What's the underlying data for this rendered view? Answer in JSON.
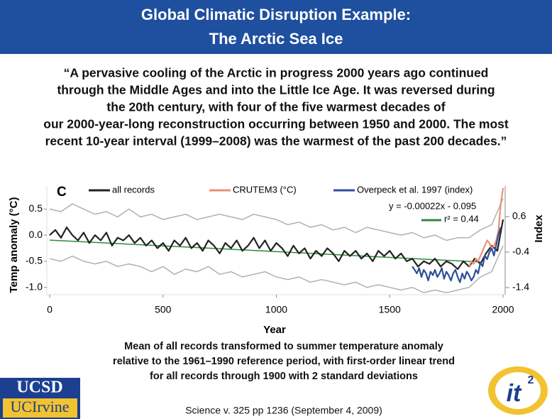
{
  "header": {
    "title_lines": [
      "Global Climatic Disruption Example:",
      "The Arctic Sea Ice"
    ]
  },
  "quote_lines": [
    "“A pervasive cooling of the Arctic in progress 2000 years ago continued",
    "through the Middle Ages and into the Little Ice Age.  It was reversed during",
    "the 20th century, with four of the five warmest decades of",
    "our 2000-year-long reconstruction occurring between 1950 and 2000. The most",
    "recent 10-year interval (1999–2008) was the warmest of the past 200 decades.”"
  ],
  "chart_data": {
    "type": "line",
    "panel_label": "C",
    "x_label": "Year",
    "y_label": "Temp anomaly (°C)",
    "y2_label": "Index",
    "xlim": [
      0,
      2000
    ],
    "xticks": [
      0,
      500,
      1000,
      1500,
      2000
    ],
    "ylim": [
      -1.14,
      0.94
    ],
    "yticks": [
      0.5,
      {
        "value": 0,
        "label": "0.0"
      },
      -0.5,
      {
        "value": -1,
        "label": "-1.0"
      }
    ],
    "y2lim": [
      -1.6,
      1.46
    ],
    "y2ticks": [
      0.6,
      -0.4,
      -1.4
    ],
    "legend": "top",
    "grid": false,
    "annotations": [
      "y = -0.00022x - 0.095",
      "r² = 0.44"
    ],
    "series": [
      {
        "color": "#b0b0b0",
        "x": [
          0,
          50,
          100,
          150,
          200,
          250,
          300,
          350,
          400,
          450,
          500,
          550,
          600,
          650,
          700,
          750,
          800,
          850,
          900,
          950,
          1000,
          1050,
          1100,
          1150,
          1200,
          1250,
          1300,
          1350,
          1400,
          1450,
          1500,
          1550,
          1600,
          1650,
          1700,
          1750,
          1800,
          1850,
          1900,
          1950,
          2000
        ],
        "values": [
          0.5,
          0.45,
          0.6,
          0.5,
          0.4,
          0.45,
          0.35,
          0.5,
          0.35,
          0.4,
          0.3,
          0.35,
          0.4,
          0.3,
          0.35,
          0.4,
          0.35,
          0.3,
          0.4,
          0.35,
          0.3,
          0.2,
          0.25,
          0.15,
          0.2,
          0.1,
          0.15,
          0.05,
          0.15,
          0.1,
          0.05,
          0.0,
          0.05,
          -0.05,
          0.0,
          -0.1,
          -0.05,
          -0.05,
          0.1,
          0.2,
          0.7
        ]
      },
      {
        "color": "#b0b0b0",
        "x": [
          0,
          50,
          100,
          150,
          200,
          250,
          300,
          350,
          400,
          450,
          500,
          550,
          600,
          650,
          700,
          750,
          800,
          850,
          900,
          950,
          1000,
          1050,
          1100,
          1150,
          1200,
          1250,
          1300,
          1350,
          1400,
          1450,
          1500,
          1550,
          1600,
          1650,
          1700,
          1750,
          1800,
          1850,
          1900,
          1950,
          2000
        ],
        "values": [
          -0.45,
          -0.5,
          -0.4,
          -0.5,
          -0.55,
          -0.5,
          -0.6,
          -0.55,
          -0.6,
          -0.7,
          -0.6,
          -0.75,
          -0.65,
          -0.7,
          -0.6,
          -0.75,
          -0.7,
          -0.8,
          -0.75,
          -0.7,
          -0.8,
          -0.85,
          -0.8,
          -0.9,
          -0.85,
          -0.9,
          -0.95,
          -0.9,
          -1.0,
          -0.95,
          -1.0,
          -1.05,
          -1.0,
          -1.1,
          -1.05,
          -1.1,
          -1.05,
          -1.0,
          -0.8,
          -0.7,
          -0.2
        ]
      },
      {
        "color": "#2e8b3a",
        "x": [
          0,
          1900
        ],
        "values": [
          -0.095,
          -0.513
        ]
      },
      {
        "name": "all records",
        "color": "#222222",
        "x": [
          0,
          25,
          50,
          75,
          100,
          125,
          150,
          175,
          200,
          225,
          250,
          275,
          300,
          325,
          350,
          375,
          400,
          425,
          450,
          475,
          500,
          525,
          550,
          575,
          600,
          625,
          650,
          675,
          700,
          725,
          750,
          775,
          800,
          825,
          850,
          875,
          900,
          925,
          950,
          975,
          1000,
          1025,
          1050,
          1075,
          1100,
          1125,
          1150,
          1175,
          1200,
          1225,
          1250,
          1275,
          1300,
          1325,
          1350,
          1375,
          1400,
          1425,
          1450,
          1475,
          1500,
          1525,
          1550,
          1575,
          1600,
          1625,
          1650,
          1675,
          1700,
          1725,
          1750,
          1775,
          1800,
          1825,
          1850,
          1875,
          1900,
          1925,
          1950,
          1975,
          2000
        ],
        "values": [
          0.0,
          0.1,
          -0.05,
          0.15,
          0.0,
          -0.1,
          0.05,
          -0.15,
          0.0,
          -0.1,
          0.05,
          -0.2,
          -0.05,
          -0.1,
          0.0,
          -0.15,
          -0.05,
          -0.2,
          -0.1,
          -0.25,
          -0.15,
          -0.3,
          -0.1,
          -0.2,
          -0.05,
          -0.25,
          -0.15,
          -0.3,
          -0.1,
          -0.2,
          -0.35,
          -0.15,
          -0.25,
          -0.1,
          -0.3,
          -0.2,
          -0.05,
          -0.25,
          -0.1,
          -0.3,
          -0.15,
          -0.25,
          -0.4,
          -0.2,
          -0.35,
          -0.25,
          -0.45,
          -0.3,
          -0.4,
          -0.25,
          -0.35,
          -0.5,
          -0.3,
          -0.4,
          -0.3,
          -0.45,
          -0.35,
          -0.5,
          -0.3,
          -0.4,
          -0.3,
          -0.45,
          -0.35,
          -0.5,
          -0.45,
          -0.6,
          -0.5,
          -0.55,
          -0.45,
          -0.6,
          -0.5,
          -0.55,
          -0.65,
          -0.5,
          -0.6,
          -0.45,
          -0.55,
          -0.35,
          -0.2,
          -0.3,
          0.3
        ]
      },
      {
        "name": "CRUTEM3 (°C)",
        "color": "#e8917a",
        "x": [
          1850,
          1860,
          1870,
          1880,
          1890,
          1900,
          1910,
          1920,
          1930,
          1940,
          1950,
          1960,
          1970,
          1980,
          1990,
          2000
        ],
        "values": [
          -0.6,
          -0.5,
          -0.55,
          -0.45,
          -0.5,
          -0.4,
          -0.3,
          -0.2,
          -0.1,
          -0.15,
          -0.25,
          -0.2,
          -0.1,
          0.1,
          0.6,
          0.9
        ]
      },
      {
        "name": "Overpeck et al. 1997 (index)",
        "color": "#2f4f9a",
        "axis": "y2",
        "x": [
          1600,
          1610,
          1620,
          1630,
          1640,
          1650,
          1660,
          1670,
          1680,
          1690,
          1700,
          1710,
          1720,
          1730,
          1740,
          1750,
          1760,
          1770,
          1780,
          1790,
          1800,
          1810,
          1820,
          1830,
          1840,
          1850,
          1860,
          1870,
          1880,
          1890,
          1900,
          1910,
          1920,
          1930,
          1940,
          1950,
          1960,
          1970,
          1980,
          1990
        ],
        "values": [
          -0.8,
          -0.9,
          -1.0,
          -0.85,
          -1.1,
          -0.9,
          -1.0,
          -1.2,
          -0.95,
          -1.05,
          -0.9,
          -1.1,
          -1.0,
          -0.85,
          -1.15,
          -0.95,
          -1.05,
          -1.2,
          -1.0,
          -0.9,
          -1.1,
          -1.25,
          -1.0,
          -1.15,
          -0.95,
          -1.05,
          -1.2,
          -1.1,
          -0.9,
          -1.0,
          -0.7,
          -0.8,
          -0.5,
          -0.6,
          -0.4,
          -0.3,
          -0.5,
          -0.2,
          0.1,
          0.3
        ]
      }
    ]
  },
  "caption_lines": [
    "Mean of all records transformed to summer temperature anomaly",
    "relative to the 1961–1990 reference period, with first-order linear trend",
    "for all records through 1900 with 2 standard deviations"
  ],
  "citation": "Science v. 325 pp 1236 (September 4, 2009)",
  "logos": {
    "left_top": "UCSD",
    "left_bottom": "UCIrvine",
    "right": "it",
    "right_sup": "2"
  }
}
